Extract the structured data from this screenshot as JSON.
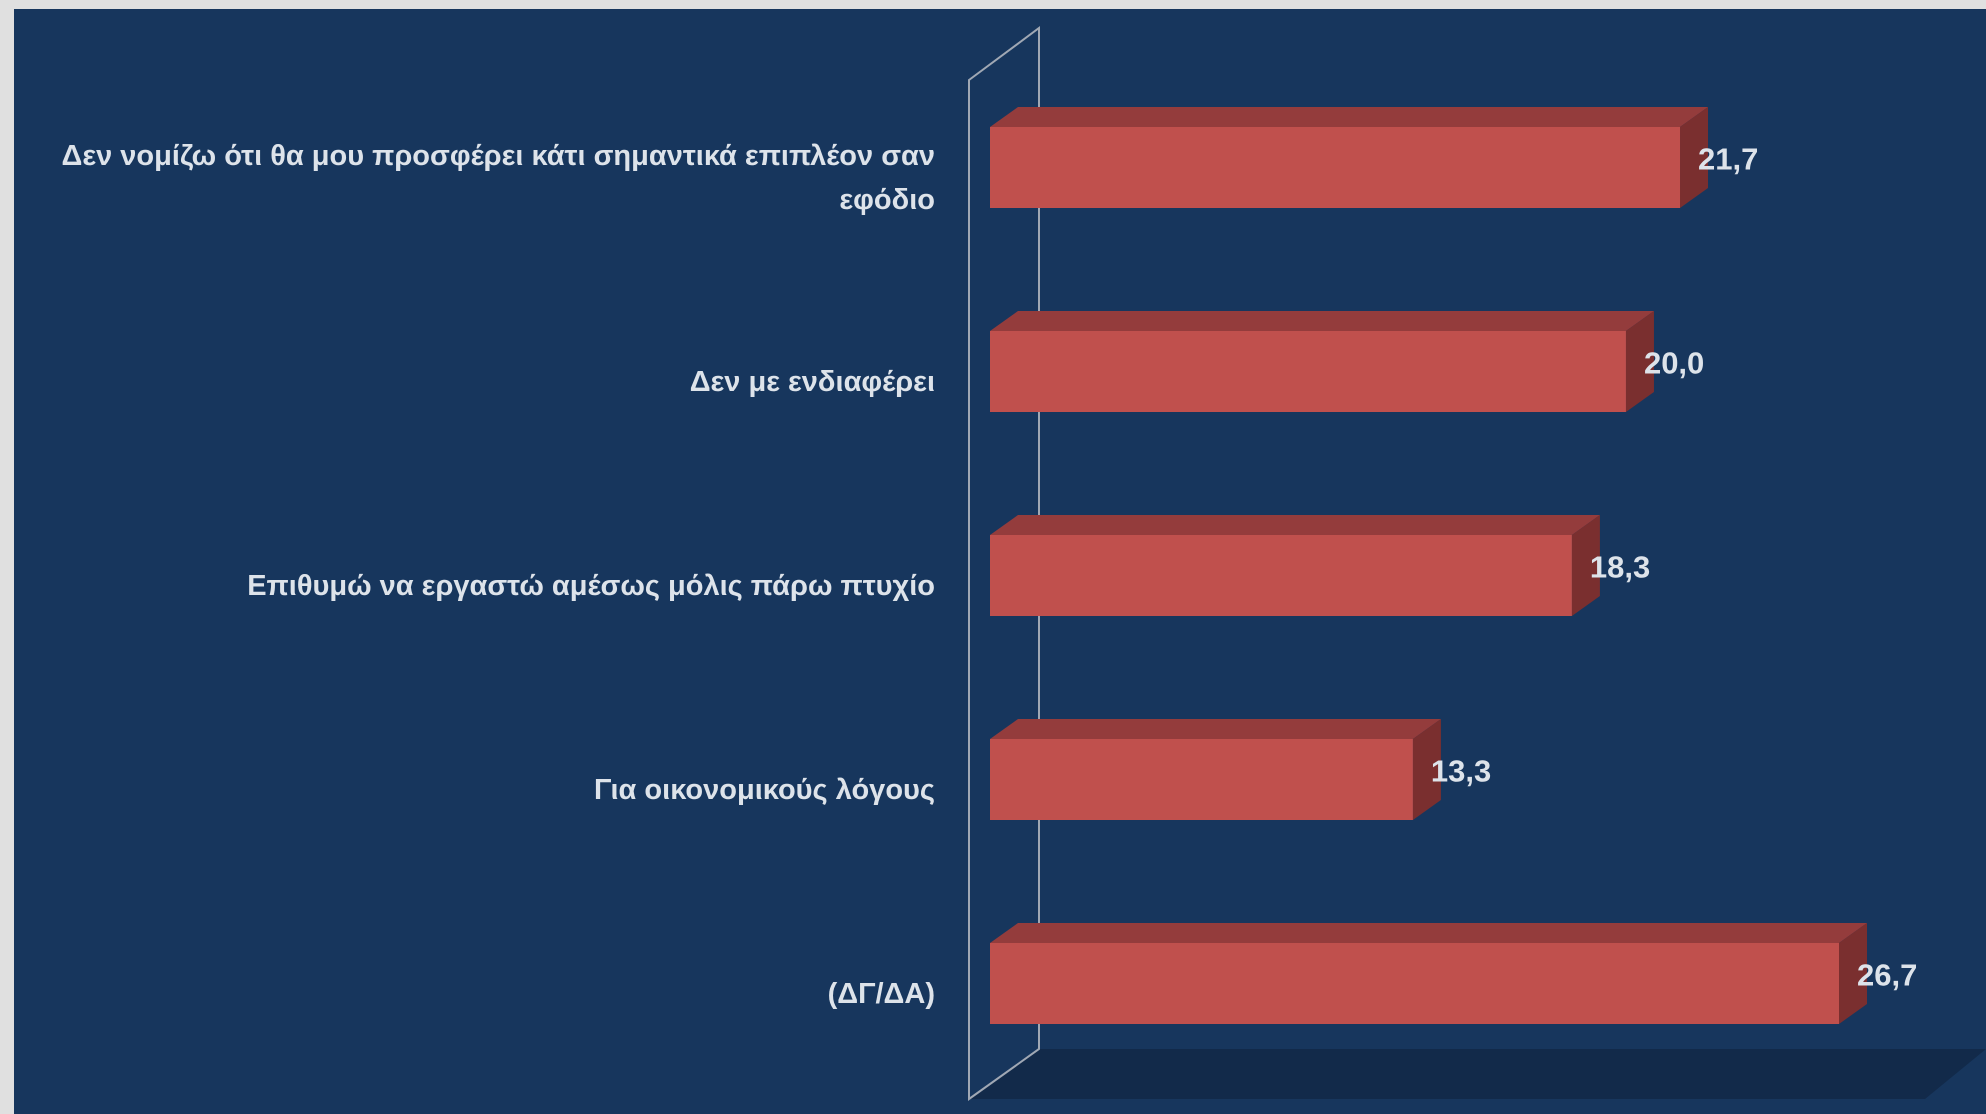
{
  "chart_data": {
    "type": "bar3d_horizontal",
    "categories": [
      "Δεν νομίζω ότι θα μου προσφέρει κάτι σημαντικά επιπλέον σαν εφόδιο",
      "Δεν με ενδιαφέρει",
      "Επιθυμώ να εργαστώ αμέσως μόλις πάρω πτυχίο",
      "Για οικονομικούς λόγους",
      "(ΔΓ/ΔΑ)"
    ],
    "values": [
      21.7,
      20.0,
      18.3,
      13.3,
      26.7
    ],
    "value_labels": [
      "21,7",
      "20,0",
      "18,3",
      "13,3",
      "26,7"
    ],
    "color": "#c0504d"
  }
}
